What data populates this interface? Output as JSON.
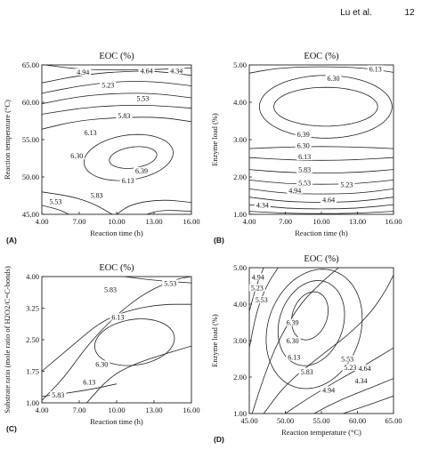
{
  "header": {
    "author": "Lu et al.",
    "page": "12"
  },
  "colors": {
    "ink": "#222222",
    "background": "#ffffff"
  },
  "chart_data": [
    {
      "type": "contour",
      "panel": "(A)",
      "title": "EOC (%)",
      "xlabel": "Reaction time (h)",
      "ylabel": "Reaction temperature (°C)",
      "xlim": [
        4.0,
        16.0
      ],
      "ylim": [
        45.0,
        65.0
      ],
      "xticks": [
        "4.00",
        "7.00",
        "10.00",
        "13.00",
        "16.00"
      ],
      "yticks": [
        "45.00",
        "50.00",
        "55.00",
        "60.00",
        "65.00"
      ],
      "center": [
        11.3,
        52.5
      ],
      "contour_levels": [
        "4.94",
        "5.23",
        "5.53",
        "5.83",
        "6.13",
        "6.30",
        "6.39",
        "4.64",
        "4.34"
      ],
      "contour_labels": [
        {
          "text": "4.94",
          "x": 7.3,
          "y": 63.8
        },
        {
          "text": "4.64",
          "x": 12.4,
          "y": 64.0
        },
        {
          "text": "4.34",
          "x": 14.8,
          "y": 64.0
        },
        {
          "text": "5.23",
          "x": 9.3,
          "y": 62.1
        },
        {
          "text": "5.53",
          "x": 12.1,
          "y": 60.3
        },
        {
          "text": "5.83",
          "x": 10.6,
          "y": 58.0
        },
        {
          "text": "6.13",
          "x": 7.9,
          "y": 55.7
        },
        {
          "text": "6.30",
          "x": 6.8,
          "y": 52.6
        },
        {
          "text": "6.39",
          "x": 12.0,
          "y": 50.6
        },
        {
          "text": "6.13",
          "x": 10.9,
          "y": 49.3
        },
        {
          "text": "5.83",
          "x": 8.4,
          "y": 47.3
        },
        {
          "text": "5.53",
          "x": 5.1,
          "y": 46.5
        }
      ]
    },
    {
      "type": "contour",
      "panel": "(B)",
      "title": "EOC (%)",
      "xlabel": "Reaction time (h)",
      "ylabel": "Enzyme load (%)",
      "xlim": [
        4.0,
        16.0
      ],
      "ylim": [
        1.0,
        5.0
      ],
      "xticks": [
        "4.00",
        "7.00",
        "10.00",
        "13.00",
        "16.00"
      ],
      "yticks": [
        "1.00",
        "2.00",
        "3.00",
        "4.00",
        "5.00"
      ],
      "center": [
        10.5,
        3.9
      ],
      "contour_levels": [
        "6.39",
        "6.30",
        "6.13",
        "5.83",
        "5.53",
        "5.23",
        "4.94",
        "4.64",
        "4.34"
      ],
      "contour_labels": [
        {
          "text": "6.13",
          "x": 14.5,
          "y": 4.85
        },
        {
          "text": "6.30",
          "x": 11.0,
          "y": 4.6
        },
        {
          "text": "6.39",
          "x": 8.5,
          "y": 3.1
        },
        {
          "text": "6.30",
          "x": 8.5,
          "y": 2.8
        },
        {
          "text": "6.13",
          "x": 8.6,
          "y": 2.5
        },
        {
          "text": "5.83",
          "x": 8.6,
          "y": 2.15
        },
        {
          "text": "5.53",
          "x": 8.6,
          "y": 1.8
        },
        {
          "text": "4.94",
          "x": 7.8,
          "y": 1.6
        },
        {
          "text": "5.23",
          "x": 12.1,
          "y": 1.75
        },
        {
          "text": "4.64",
          "x": 10.6,
          "y": 1.35
        },
        {
          "text": "4.34",
          "x": 5.1,
          "y": 1.2
        }
      ]
    },
    {
      "type": "contour",
      "panel": "(C)",
      "title": "EOC (%)",
      "xlabel": "Reaction time (h)",
      "ylabel": "Substrate ratio (mole ratio of H2O2/C=C-bonds)",
      "xlim": [
        4.0,
        16.0
      ],
      "ylim": [
        1.0,
        4.0
      ],
      "xticks": [
        "4.00",
        "7.00",
        "10.00",
        "13.00",
        "16.00"
      ],
      "yticks": [
        "1.00",
        "1.75",
        "2.50",
        "3.25",
        "4.00"
      ],
      "center": [
        11.6,
        2.45
      ],
      "contour_levels": [
        "5.53",
        "5.83",
        "6.13",
        "6.30"
      ],
      "contour_labels": [
        {
          "text": "5.53",
          "x": 14.3,
          "y": 3.8
        },
        {
          "text": "5.83",
          "x": 9.5,
          "y": 3.65
        },
        {
          "text": "6.13",
          "x": 10.1,
          "y": 3.0
        },
        {
          "text": "6.30",
          "x": 8.8,
          "y": 1.88
        },
        {
          "text": "6.13",
          "x": 7.8,
          "y": 1.45
        },
        {
          "text": "5.83",
          "x": 5.3,
          "y": 1.15
        }
      ]
    },
    {
      "type": "contour",
      "panel": "(D)",
      "title": "EOC (%)",
      "xlabel": "Reaction temperature (°C)",
      "ylabel": "Enzyme load (%)",
      "xlim": [
        45.0,
        65.0
      ],
      "ylim": [
        1.0,
        5.0
      ],
      "xticks": [
        "45.00",
        "50.00",
        "55.00",
        "60.00",
        "65.00"
      ],
      "yticks": [
        "1.00",
        "2.00",
        "3.00",
        "4.00",
        "5.00"
      ],
      "center": [
        53.2,
        3.7
      ],
      "contour_levels": [
        "4.94",
        "5.23",
        "5.53",
        "6.39",
        "6.30",
        "6.13",
        "5.83",
        "4.64",
        "4.34"
      ],
      "contour_labels": [
        {
          "text": "4.94",
          "x": 46.2,
          "y": 4.7
        },
        {
          "text": "5.23",
          "x": 46.1,
          "y": 4.4
        },
        {
          "text": "5.53",
          "x": 46.7,
          "y": 4.07
        },
        {
          "text": "6.39",
          "x": 51.0,
          "y": 3.45
        },
        {
          "text": "6.30",
          "x": 51.0,
          "y": 2.95
        },
        {
          "text": "6.13",
          "x": 51.2,
          "y": 2.5
        },
        {
          "text": "5.83",
          "x": 53.0,
          "y": 2.1
        },
        {
          "text": "5.53",
          "x": 58.6,
          "y": 2.45
        },
        {
          "text": "5.23",
          "x": 59.0,
          "y": 2.22
        },
        {
          "text": "4.64",
          "x": 61.0,
          "y": 2.2
        },
        {
          "text": "4.34",
          "x": 60.5,
          "y": 1.85
        },
        {
          "text": "4.94",
          "x": 56.0,
          "y": 1.6
        }
      ]
    }
  ]
}
